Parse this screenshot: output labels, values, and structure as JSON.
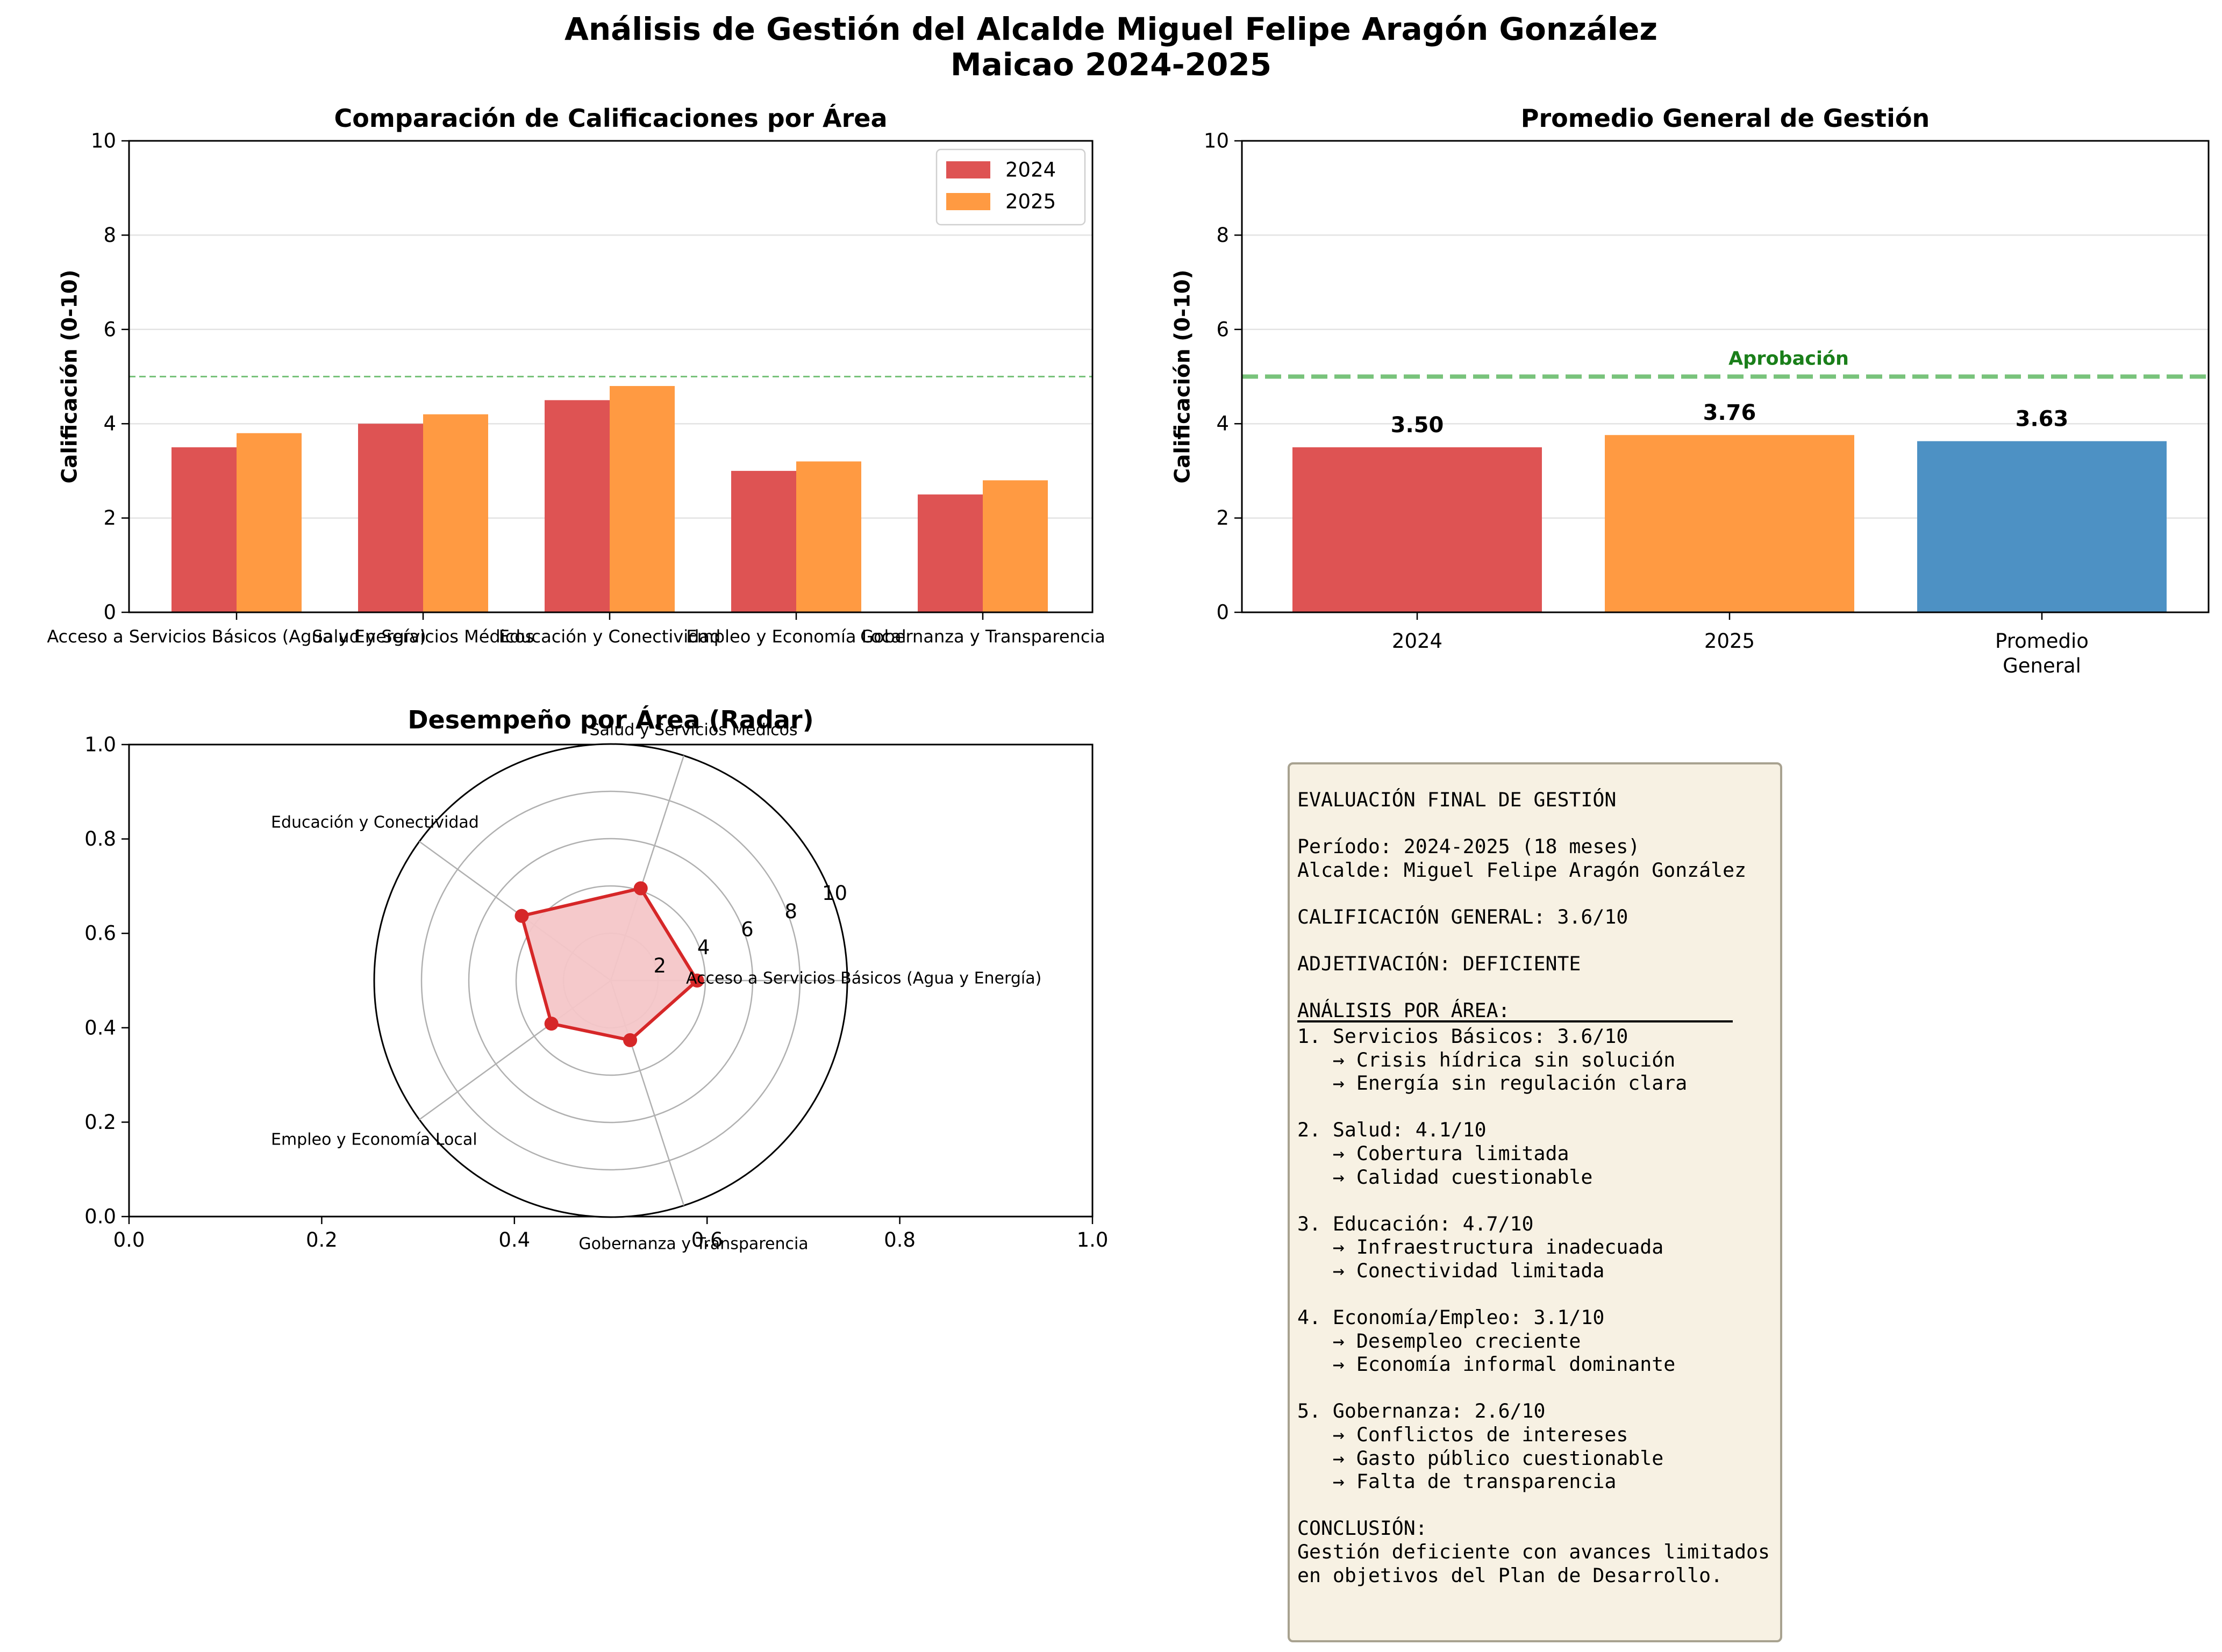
{
  "title_line1": "Análisis de Gestión del Alcalde Miguel Felipe Aragón González",
  "title_line2": "Maicao 2024-2025",
  "colors": {
    "y2024": "#de5353",
    "y2025": "#ff9a42",
    "promedio": "#4d91c4",
    "approval": "#4caf50",
    "approval_text": "#1a7f1a",
    "radar_line": "#d62728",
    "radar_fill": "#f4c6c8"
  },
  "chart_data": [
    {
      "type": "bar",
      "title": "Comparación de Calificaciones por Área",
      "ylabel": "Calificación (0-10)",
      "xlabel": "",
      "ylim": [
        0,
        10
      ],
      "yticks": [
        "0",
        "2",
        "4",
        "6",
        "8",
        "10"
      ],
      "categories": [
        "Acceso a Servicios Básicos (Agua y Energía)",
        "Salud y Servicios Médicos",
        "Educación y Conectividad",
        "Empleo y Economía Local",
        "Gobernanza y Transparencia"
      ],
      "series": [
        {
          "name": "2024",
          "values": [
            3.5,
            4.0,
            4.5,
            3.0,
            2.5
          ]
        },
        {
          "name": "2025",
          "values": [
            3.8,
            4.2,
            4.8,
            3.2,
            2.8
          ]
        }
      ],
      "reference_line": 5,
      "legend": "top-right",
      "grid": "y"
    },
    {
      "type": "bar",
      "title": "Promedio General de Gestión",
      "ylabel": "Calificación (0-10)",
      "ylim": [
        0,
        10
      ],
      "yticks": [
        "0",
        "2",
        "4",
        "6",
        "8",
        "10"
      ],
      "categories": [
        "2024",
        "2025",
        "Promedio General"
      ],
      "values": [
        3.5,
        3.76,
        3.63
      ],
      "value_labels": [
        "3.50",
        "3.76",
        "3.63"
      ],
      "reference_line": 5,
      "reference_label": "Aprobación",
      "grid": "y"
    },
    {
      "type": "radar",
      "title": "Desempeño por Área (Radar)",
      "categories": [
        "Acceso a Servicios Básicos (Agua y Energía)",
        "Salud y Servicios Médicos",
        "Educación y Conectividad",
        "Empleo y Economía Local",
        "Gobernanza y Transparencia"
      ],
      "values": [
        3.65,
        4.1,
        4.65,
        3.1,
        2.65
      ],
      "rlim": [
        0,
        10
      ],
      "rticks": [
        "2",
        "4",
        "6",
        "8",
        "10"
      ],
      "background_axes": {
        "xlim": [
          0,
          1
        ],
        "ylim": [
          0,
          1
        ],
        "xticks": [
          "0.0",
          "0.2",
          "0.4",
          "0.6",
          "0.8",
          "1.0"
        ],
        "yticks": [
          "0.0",
          "0.2",
          "0.4",
          "0.6",
          "0.8",
          "1.0"
        ]
      }
    }
  ],
  "evaluation": {
    "lines": [
      "EVALUACIÓN FINAL DE GESTIÓN",
      "",
      "Período: 2024-2025 (18 meses)",
      "Alcalde: Miguel Felipe Aragón González",
      "",
      "CALIFICACIÓN GENERAL: 3.6/10",
      "",
      "ADJETIVACIÓN: DEFICIENTE",
      "",
      "ANÁLISIS POR ÁREA:",
      "RULE",
      "1. Servicios Básicos: 3.6/10",
      "   → Crisis hídrica sin solución",
      "   → Energía sin regulación clara",
      "",
      "2. Salud: 4.1/10",
      "   → Cobertura limitada",
      "   → Calidad cuestionable",
      "",
      "3. Educación: 4.7/10",
      "   → Infraestructura inadecuada",
      "   → Conectividad limitada",
      "",
      "4. Economía/Empleo: 3.1/10",
      "   → Desempleo creciente",
      "   → Economía informal dominante",
      "",
      "5. Gobernanza: 2.6/10",
      "   → Conflictos de intereses",
      "   → Gasto público cuestionable",
      "   → Falta de transparencia",
      "",
      "CONCLUSIÓN:",
      "Gestión deficiente con avances limitados",
      "en objetivos del Plan de Desarrollo."
    ]
  }
}
